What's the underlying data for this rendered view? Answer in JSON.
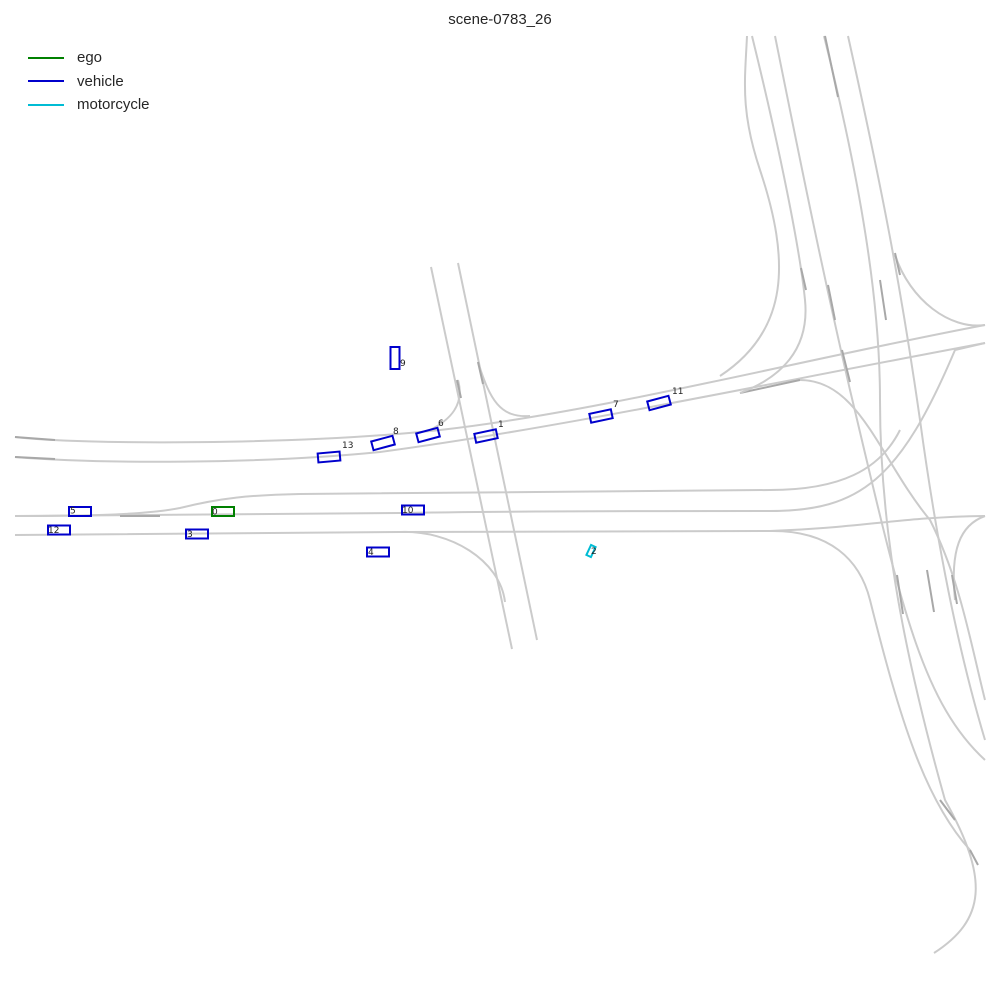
{
  "title": "scene-0783_26",
  "legend": [
    {
      "label": "ego",
      "color": "#008000"
    },
    {
      "label": "vehicle",
      "color": "#0000cc"
    },
    {
      "label": "motorcycle",
      "color": "#00bcd4"
    }
  ],
  "agents": [
    {
      "id": "0",
      "class": "ego"
    },
    {
      "id": "1",
      "class": "vehicle"
    },
    {
      "id": "2",
      "class": "motorcycle"
    },
    {
      "id": "3",
      "class": "vehicle"
    },
    {
      "id": "4",
      "class": "vehicle"
    },
    {
      "id": "5",
      "class": "vehicle"
    },
    {
      "id": "6",
      "class": "vehicle"
    },
    {
      "id": "7",
      "class": "vehicle"
    },
    {
      "id": "8",
      "class": "vehicle"
    },
    {
      "id": "9",
      "class": "vehicle"
    },
    {
      "id": "10",
      "class": "vehicle"
    },
    {
      "id": "11",
      "class": "vehicle"
    },
    {
      "id": "12",
      "class": "vehicle"
    },
    {
      "id": "13",
      "class": "vehicle"
    }
  ]
}
